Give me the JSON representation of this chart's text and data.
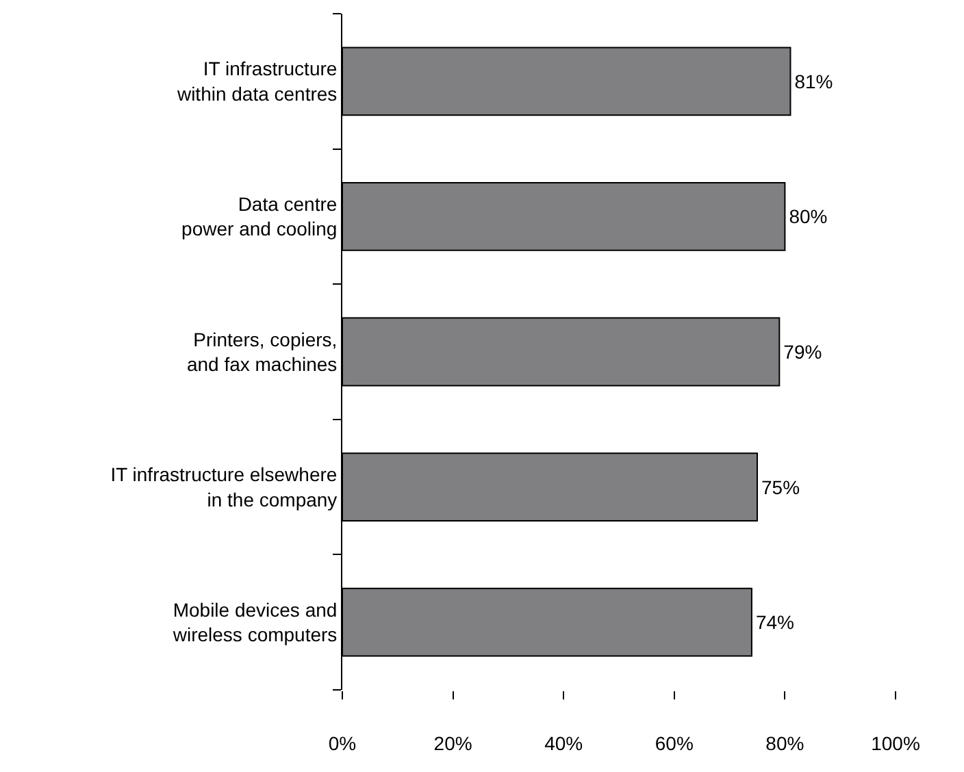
{
  "chart_data": {
    "type": "bar",
    "orientation": "horizontal",
    "categories": [
      "IT infrastructure\nwithin data centres",
      "Data centre\npower and cooling",
      "Printers, copiers,\nand fax machines",
      "IT infrastructure elsewhere\nin the company",
      "Mobile devices and\nwireless computers"
    ],
    "values": [
      81,
      80,
      79,
      75,
      74
    ],
    "value_labels": [
      "81%",
      "80%",
      "79%",
      "75%",
      "74%"
    ],
    "color": "#808083",
    "xlim": [
      0,
      100
    ],
    "xticks": [
      {
        "value": 0,
        "label": "0%"
      },
      {
        "value": 20,
        "label": "20%"
      },
      {
        "value": 40,
        "label": "40%"
      },
      {
        "value": 60,
        "label": "60%"
      },
      {
        "value": 80,
        "label": "80%"
      },
      {
        "value": 100,
        "label": "100%"
      }
    ],
    "legend": false
  }
}
